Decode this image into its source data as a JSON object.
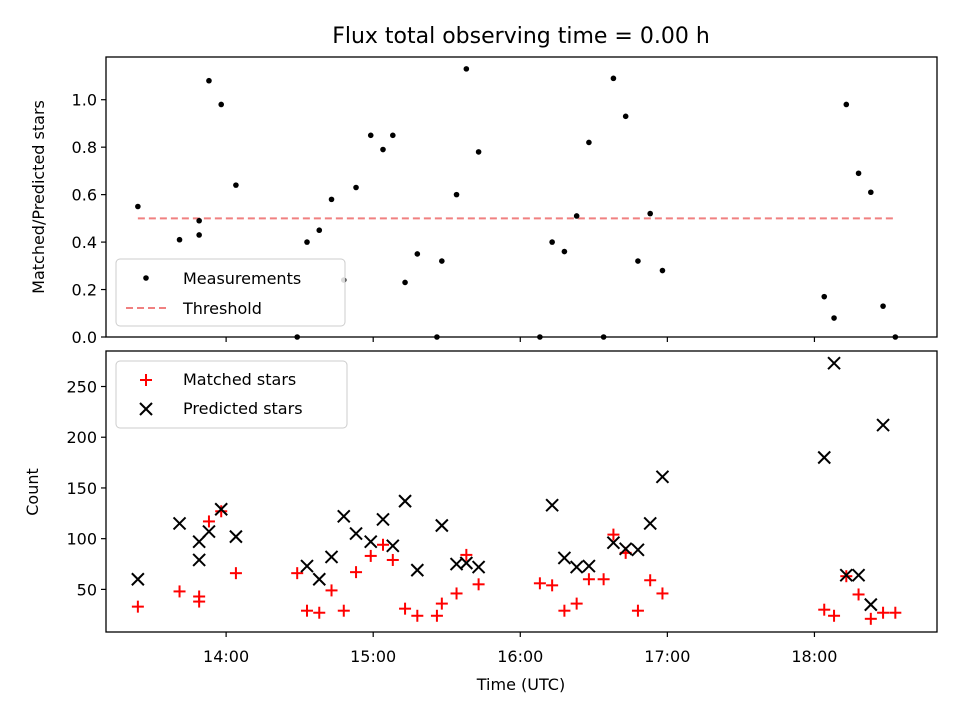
{
  "chart_data": [
    {
      "type": "scatter",
      "title": "Flux total observing time = 0.00 h",
      "xlabel": "",
      "ylabel": "Matched/Predicted stars",
      "x_is_time": true,
      "xlim": [
        "13:11",
        "18:50"
      ],
      "ylim": [
        0,
        1.18
      ],
      "yticks": [
        "0.0",
        "0.2",
        "0.4",
        "0.6",
        "0.8",
        "1.0"
      ],
      "legend_position": "lower left",
      "colors": {
        "measurements": "#000000",
        "threshold": "#f08080"
      },
      "series": [
        {
          "name": "Measurements",
          "marker": "dot",
          "points": [
            [
              "13:24",
              0.55
            ],
            [
              "13:41",
              0.41
            ],
            [
              "13:49",
              0.49
            ],
            [
              "13:49",
              0.43
            ],
            [
              "13:53",
              1.08
            ],
            [
              "13:58",
              0.98
            ],
            [
              "14:04",
              0.64
            ],
            [
              "14:29",
              0.0
            ],
            [
              "14:33",
              0.4
            ],
            [
              "14:38",
              0.45
            ],
            [
              "14:43",
              0.58
            ],
            [
              "14:48",
              0.24
            ],
            [
              "14:53",
              0.63
            ],
            [
              "14:59",
              0.85
            ],
            [
              "15:04",
              0.79
            ],
            [
              "15:08",
              0.85
            ],
            [
              "15:13",
              0.23
            ],
            [
              "15:18",
              0.35
            ],
            [
              "15:26",
              0.0
            ],
            [
              "15:28",
              0.32
            ],
            [
              "15:34",
              0.6
            ],
            [
              "15:38",
              1.13
            ],
            [
              "15:43",
              0.78
            ],
            [
              "16:08",
              0.0
            ],
            [
              "16:13",
              0.4
            ],
            [
              "16:18",
              0.36
            ],
            [
              "16:23",
              0.51
            ],
            [
              "16:28",
              0.82
            ],
            [
              "16:34",
              0.0
            ],
            [
              "16:38",
              1.09
            ],
            [
              "16:43",
              0.93
            ],
            [
              "16:48",
              0.32
            ],
            [
              "16:53",
              0.52
            ],
            [
              "16:58",
              0.28
            ],
            [
              "18:04",
              0.17
            ],
            [
              "18:08",
              0.08
            ],
            [
              "18:13",
              0.98
            ],
            [
              "18:18",
              0.69
            ],
            [
              "18:23",
              0.61
            ],
            [
              "18:28",
              0.13
            ],
            [
              "18:33",
              0.0
            ]
          ]
        },
        {
          "name": "Threshold",
          "marker": "dashed-line",
          "points": [
            [
              "13:24",
              0.5
            ],
            [
              "18:33",
              0.5
            ]
          ]
        }
      ]
    },
    {
      "type": "scatter",
      "title": "",
      "xlabel": "Time (UTC)",
      "ylabel": "Count",
      "x_is_time": true,
      "xlim": [
        "13:11",
        "18:50"
      ],
      "ylim": [
        8,
        285
      ],
      "yticks": [
        "50",
        "100",
        "150",
        "200",
        "250"
      ],
      "xticks": [
        "14:00",
        "15:00",
        "16:00",
        "17:00",
        "18:00"
      ],
      "legend_position": "upper left",
      "colors": {
        "matched": "#ff0000",
        "predicted": "#000000"
      },
      "series": [
        {
          "name": "Matched stars",
          "marker": "plus",
          "points": [
            [
              "13:24",
              33
            ],
            [
              "13:41",
              48
            ],
            [
              "13:49",
              43
            ],
            [
              "13:49",
              38
            ],
            [
              "13:53",
              117
            ],
            [
              "13:58",
              127
            ],
            [
              "14:04",
              66
            ],
            [
              "14:29",
              66
            ],
            [
              "14:33",
              29
            ],
            [
              "14:38",
              27
            ],
            [
              "14:43",
              49
            ],
            [
              "14:48",
              29
            ],
            [
              "14:53",
              67
            ],
            [
              "14:59",
              83
            ],
            [
              "15:04",
              94
            ],
            [
              "15:08",
              79
            ],
            [
              "15:13",
              31
            ],
            [
              "15:18",
              24
            ],
            [
              "15:26",
              24
            ],
            [
              "15:28",
              36
            ],
            [
              "15:34",
              46
            ],
            [
              "15:38",
              84
            ],
            [
              "15:43",
              55
            ],
            [
              "16:08",
              56
            ],
            [
              "16:13",
              54
            ],
            [
              "16:18",
              29
            ],
            [
              "16:23",
              36
            ],
            [
              "16:28",
              60
            ],
            [
              "16:34",
              60
            ],
            [
              "16:38",
              104
            ],
            [
              "16:43",
              86
            ],
            [
              "16:48",
              29
            ],
            [
              "16:53",
              59
            ],
            [
              "16:58",
              46
            ],
            [
              "18:04",
              30
            ],
            [
              "18:08",
              24
            ],
            [
              "18:13",
              63
            ],
            [
              "18:18",
              45
            ],
            [
              "18:23",
              21
            ],
            [
              "18:28",
              27
            ],
            [
              "18:33",
              27
            ]
          ]
        },
        {
          "name": "Predicted stars",
          "marker": "x",
          "points": [
            [
              "13:24",
              60
            ],
            [
              "13:41",
              115
            ],
            [
              "13:49",
              97
            ],
            [
              "13:49",
              79
            ],
            [
              "13:53",
              107
            ],
            [
              "13:58",
              129
            ],
            [
              "14:04",
              102
            ],
            [
              "14:33",
              73
            ],
            [
              "14:38",
              60
            ],
            [
              "14:43",
              82
            ],
            [
              "14:48",
              122
            ],
            [
              "14:53",
              105
            ],
            [
              "14:59",
              97
            ],
            [
              "15:04",
              119
            ],
            [
              "15:08",
              93
            ],
            [
              "15:13",
              137
            ],
            [
              "15:18",
              69
            ],
            [
              "15:28",
              113
            ],
            [
              "15:34",
              75
            ],
            [
              "15:38",
              76
            ],
            [
              "15:43",
              72
            ],
            [
              "16:13",
              133
            ],
            [
              "16:18",
              81
            ],
            [
              "16:23",
              72
            ],
            [
              "16:28",
              73
            ],
            [
              "16:38",
              96
            ],
            [
              "16:43",
              90
            ],
            [
              "16:48",
              89
            ],
            [
              "16:53",
              115
            ],
            [
              "16:58",
              161
            ],
            [
              "18:04",
              180
            ],
            [
              "18:08",
              273
            ],
            [
              "18:13",
              64
            ],
            [
              "18:18",
              64
            ],
            [
              "18:23",
              35
            ],
            [
              "18:28",
              212
            ]
          ]
        }
      ]
    }
  ]
}
